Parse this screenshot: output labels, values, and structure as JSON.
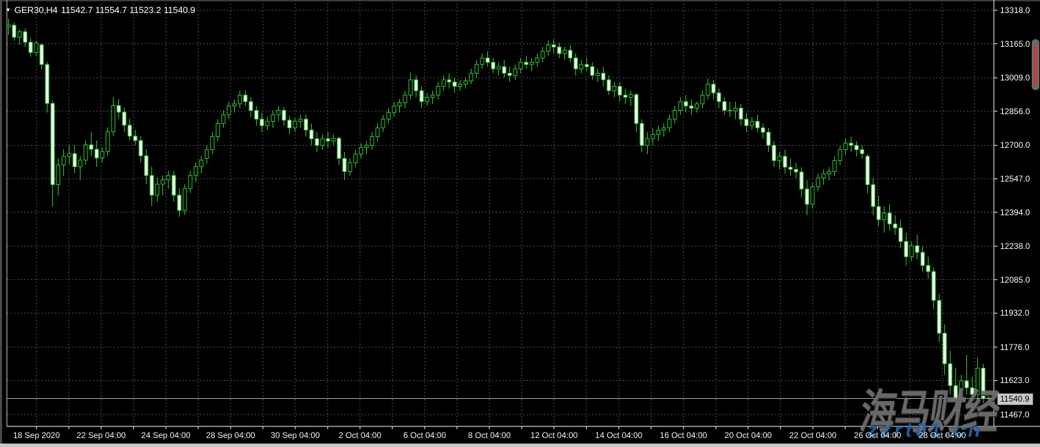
{
  "header": {
    "instrument": "GER30,H4",
    "ohlc_readout": "11542.7 11554.7 11523.2 11540.9",
    "dropdown_icon": "▼"
  },
  "current_price": {
    "value": "11540.9"
  },
  "watermark": {
    "cjk": "海马财经",
    "url": "zzrt01.cn"
  },
  "colors": {
    "background": "#000000",
    "candle_green": "#32CD32",
    "bear_fill": "#eef8ee",
    "bull_fill": "#000000",
    "grid": "#565656",
    "axis_frame": "#ffffff",
    "axis_text": "#ffffff",
    "price_tag_bg": "#c9c9c9",
    "scroll_red": "#c23b38",
    "watermark_blue": "#2066b0"
  },
  "chart_data": {
    "type": "candlestick",
    "symbol": "GER30",
    "timeframe": "H4",
    "title": "GER30,H4 11542.7 11554.7 11523.2 11540.9",
    "grid": "dotted",
    "bull_style": "hollow",
    "bear_style": "filled-pale",
    "ylim": [
      11413,
      13365
    ],
    "y_ticks": [
      13318.0,
      13165.0,
      13009.0,
      12856.0,
      12700.0,
      12547.0,
      12394.0,
      12238.0,
      12085.0,
      11932.0,
      11776.0,
      11623.0,
      11467.0
    ],
    "x_labels": [
      "18 Sep 2020",
      "22 Sep 04:00",
      "24 Sep 04:00",
      "28 Sep 04:00",
      "30 Sep 04:00",
      "2 Oct 04:00",
      "6 Oct 04:00",
      "8 Oct 04:00",
      "12 Oct 04:00",
      "14 Oct 04:00",
      "16 Oct 04:00",
      "20 Oct 04:00",
      "22 Oct 04:00",
      "26 Oct 04:00",
      "28 Oct 04:00"
    ],
    "last_close": 11540.9,
    "ohlc": [
      [
        13242,
        13280,
        13205,
        13250
      ],
      [
        13250,
        13262,
        13180,
        13195
      ],
      [
        13195,
        13230,
        13160,
        13220
      ],
      [
        13220,
        13236,
        13150,
        13172
      ],
      [
        13172,
        13190,
        13105,
        13125
      ],
      [
        13125,
        13176,
        13110,
        13168
      ],
      [
        13160,
        13168,
        13048,
        13070
      ],
      [
        13070,
        13082,
        12850,
        12892
      ],
      [
        12892,
        12905,
        12420,
        12520
      ],
      [
        12520,
        12642,
        12470,
        12610
      ],
      [
        12610,
        12682,
        12560,
        12650
      ],
      [
        12650,
        12702,
        12612,
        12662
      ],
      [
        12662,
        12700,
        12572,
        12602
      ],
      [
        12602,
        12650,
        12540,
        12632
      ],
      [
        12632,
        12722,
        12612,
        12702
      ],
      [
        12702,
        12762,
        12652,
        12682
      ],
      [
        12682,
        12722,
        12602,
        12642
      ],
      [
        12642,
        12692,
        12622,
        12672
      ],
      [
        12672,
        12782,
        12652,
        12762
      ],
      [
        12762,
        12922,
        12742,
        12882
      ],
      [
        12882,
        12912,
        12822,
        12852
      ],
      [
        12852,
        12872,
        12762,
        12792
      ],
      [
        12792,
        12822,
        12722,
        12742
      ],
      [
        12742,
        12772,
        12702,
        12722
      ],
      [
        12722,
        12742,
        12622,
        12652
      ],
      [
        12652,
        12682,
        12522,
        12562
      ],
      [
        12562,
        12602,
        12422,
        12472
      ],
      [
        12472,
        12552,
        12442,
        12522
      ],
      [
        12522,
        12562,
        12472,
        12542
      ],
      [
        12542,
        12582,
        12502,
        12562
      ],
      [
        12562,
        12582,
        12442,
        12472
      ],
      [
        12472,
        12502,
        12372,
        12402
      ],
      [
        12402,
        12522,
        12382,
        12502
      ],
      [
        12502,
        12582,
        12482,
        12562
      ],
      [
        12562,
        12622,
        12532,
        12602
      ],
      [
        12602,
        12652,
        12572,
        12632
      ],
      [
        12640,
        12700,
        12615,
        12680
      ],
      [
        12680,
        12760,
        12660,
        12740
      ],
      [
        12740,
        12820,
        12720,
        12800
      ],
      [
        12800,
        12860,
        12780,
        12840
      ],
      [
        12840,
        12900,
        12820,
        12880
      ],
      [
        12880,
        12910,
        12850,
        12890
      ],
      [
        12890,
        12950,
        12870,
        12930
      ],
      [
        12930,
        12952,
        12880,
        12900
      ],
      [
        12900,
        12920,
        12830,
        12860
      ],
      [
        12860,
        12880,
        12790,
        12820
      ],
      [
        12820,
        12850,
        12760,
        12790
      ],
      [
        12790,
        12830,
        12770,
        12810
      ],
      [
        12810,
        12860,
        12780,
        12840
      ],
      [
        12840,
        12880,
        12810,
        12860
      ],
      [
        12860,
        12875,
        12790,
        12815
      ],
      [
        12815,
        12835,
        12750,
        12780
      ],
      [
        12780,
        12825,
        12760,
        12810
      ],
      [
        12810,
        12840,
        12780,
        12820
      ],
      [
        12820,
        12840,
        12740,
        12770
      ],
      [
        12770,
        12800,
        12700,
        12730
      ],
      [
        12730,
        12760,
        12670,
        12700
      ],
      [
        12700,
        12750,
        12680,
        12730
      ],
      [
        12730,
        12760,
        12690,
        12720
      ],
      [
        12720,
        12750,
        12700,
        12732
      ],
      [
        12732,
        12740,
        12610,
        12640
      ],
      [
        12640,
        12670,
        12540,
        12580
      ],
      [
        12580,
        12640,
        12560,
        12620
      ],
      [
        12620,
        12680,
        12600,
        12660
      ],
      [
        12660,
        12710,
        12640,
        12690
      ],
      [
        12690,
        12720,
        12660,
        12700
      ],
      [
        12700,
        12760,
        12680,
        12740
      ],
      [
        12740,
        12800,
        12720,
        12780
      ],
      [
        12780,
        12840,
        12760,
        12820
      ],
      [
        12820,
        12870,
        12800,
        12850
      ],
      [
        12850,
        12900,
        12830,
        12880
      ],
      [
        12880,
        12912,
        12850,
        12895
      ],
      [
        12895,
        12950,
        12870,
        12930
      ],
      [
        12930,
        13035,
        12910,
        13000
      ],
      [
        13000,
        13020,
        12920,
        12950
      ],
      [
        12950,
        12970,
        12870,
        12900
      ],
      [
        12900,
        12940,
        12880,
        12920
      ],
      [
        12920,
        12950,
        12890,
        12930
      ],
      [
        12930,
        12990,
        12910,
        12970
      ],
      [
        12970,
        13020,
        12950,
        13000
      ],
      [
        13000,
        13030,
        12960,
        12990
      ],
      [
        12990,
        13010,
        12940,
        12970
      ],
      [
        12970,
        13000,
        12950,
        12980
      ],
      [
        12980,
        13010,
        12960,
        12995
      ],
      [
        12995,
        13050,
        12980,
        13030
      ],
      [
        13030,
        13090,
        13010,
        13070
      ],
      [
        13070,
        13120,
        13050,
        13100
      ],
      [
        13100,
        13130,
        13060,
        13080
      ],
      [
        13080,
        13100,
        13030,
        13050
      ],
      [
        13050,
        13080,
        13020,
        13060
      ],
      [
        13060,
        13090,
        13010,
        13030
      ],
      [
        13030,
        13060,
        12990,
        13020
      ],
      [
        13020,
        13070,
        13000,
        13050
      ],
      [
        13050,
        13100,
        13030,
        13080
      ],
      [
        13080,
        13110,
        13050,
        13070
      ],
      [
        13070,
        13100,
        13040,
        13080
      ],
      [
        13080,
        13120,
        13060,
        13100
      ],
      [
        13100,
        13150,
        13080,
        13130
      ],
      [
        13130,
        13180,
        13110,
        13160
      ],
      [
        13160,
        13185,
        13120,
        13150
      ],
      [
        13150,
        13170,
        13100,
        13120
      ],
      [
        13120,
        13150,
        13090,
        13135
      ],
      [
        13135,
        13160,
        13080,
        13100
      ],
      [
        13100,
        13120,
        13020,
        13050
      ],
      [
        13050,
        13090,
        13030,
        13070
      ],
      [
        13070,
        13100,
        13040,
        13060
      ],
      [
        13060,
        13080,
        13000,
        13020
      ],
      [
        13020,
        13050,
        12990,
        13030
      ],
      [
        13030,
        13060,
        12970,
        13000
      ],
      [
        13000,
        13020,
        12930,
        12950
      ],
      [
        12950,
        12990,
        12920,
        12970
      ],
      [
        12970,
        12990,
        12900,
        12930
      ],
      [
        12930,
        12960,
        12890,
        12920
      ],
      [
        12920,
        12950,
        12880,
        12932
      ],
      [
        12932,
        12940,
        12760,
        12800
      ],
      [
        12800,
        12820,
        12668,
        12700
      ],
      [
        12700,
        12760,
        12660,
        12730
      ],
      [
        12730,
        12780,
        12700,
        12750
      ],
      [
        12750,
        12790,
        12720,
        12770
      ],
      [
        12770,
        12800,
        12740,
        12780
      ],
      [
        12780,
        12840,
        12760,
        12820
      ],
      [
        12820,
        12880,
        12800,
        12860
      ],
      [
        12860,
        12920,
        12840,
        12900
      ],
      [
        12900,
        12930,
        12850,
        12880
      ],
      [
        12880,
        12910,
        12840,
        12870
      ],
      [
        12870,
        12900,
        12850,
        12890
      ],
      [
        12890,
        12950,
        12870,
        12930
      ],
      [
        12930,
        13005,
        12910,
        12980
      ],
      [
        12980,
        13000,
        12910,
        12940
      ],
      [
        12940,
        12960,
        12870,
        12900
      ],
      [
        12900,
        12920,
        12840,
        12860
      ],
      [
        12860,
        12900,
        12830,
        12858
      ],
      [
        12858,
        12900,
        12820,
        12870
      ],
      [
        12870,
        12890,
        12790,
        12820
      ],
      [
        12820,
        12850,
        12760,
        12790
      ],
      [
        12790,
        12830,
        12770,
        12810
      ],
      [
        12810,
        12840,
        12760,
        12780
      ],
      [
        12780,
        12800,
        12730,
        12760
      ],
      [
        12760,
        12780,
        12670,
        12700
      ],
      [
        12700,
        12720,
        12600,
        12630
      ],
      [
        12630,
        12670,
        12590,
        12650
      ],
      [
        12650,
        12680,
        12570,
        12600
      ],
      [
        12600,
        12640,
        12560,
        12590
      ],
      [
        12590,
        12620,
        12550,
        12578
      ],
      [
        12578,
        12600,
        12460,
        12500
      ],
      [
        12500,
        12540,
        12381,
        12430
      ],
      [
        12430,
        12530,
        12410,
        12510
      ],
      [
        12510,
        12570,
        12490,
        12550
      ],
      [
        12550,
        12590,
        12520,
        12570
      ],
      [
        12570,
        12600,
        12540,
        12580
      ],
      [
        12580,
        12650,
        12560,
        12630
      ],
      [
        12630,
        12700,
        12610,
        12680
      ],
      [
        12680,
        12730,
        12660,
        12710
      ],
      [
        12710,
        12740,
        12670,
        12700
      ],
      [
        12700,
        12720,
        12650,
        12680
      ],
      [
        12680,
        12700,
        12640,
        12662
      ],
      [
        12650,
        12660,
        12480,
        12520
      ],
      [
        12520,
        12550,
        12380,
        12420
      ],
      [
        12420,
        12470,
        12330,
        12360
      ],
      [
        12360,
        12420,
        12300,
        12390
      ],
      [
        12390,
        12430,
        12310,
        12340
      ],
      [
        12340,
        12380,
        12290,
        12322
      ],
      [
        12322,
        12360,
        12230,
        12260
      ],
      [
        12260,
        12300,
        12150,
        12190
      ],
      [
        12190,
        12260,
        12170,
        12240
      ],
      [
        12240,
        12290,
        12180,
        12210
      ],
      [
        12210,
        12240,
        12120,
        12150
      ],
      [
        12150,
        12190,
        12090,
        12122
      ],
      [
        12122,
        12140,
        11950,
        11990
      ],
      [
        11990,
        12020,
        11800,
        11840
      ],
      [
        11840,
        11880,
        11650,
        11700
      ],
      [
        11700,
        11760,
        11560,
        11600
      ],
      [
        11600,
        11680,
        11478,
        11540
      ],
      [
        11540,
        11650,
        11500,
        11622
      ],
      [
        11622,
        11740,
        11560,
        11590
      ],
      [
        11590,
        11640,
        11505,
        11560
      ],
      [
        11560,
        11730,
        11530,
        11680
      ],
      [
        11680,
        11700,
        11520,
        11543
      ],
      [
        11542.7,
        11554.7,
        11523.2,
        11540.9
      ]
    ]
  }
}
